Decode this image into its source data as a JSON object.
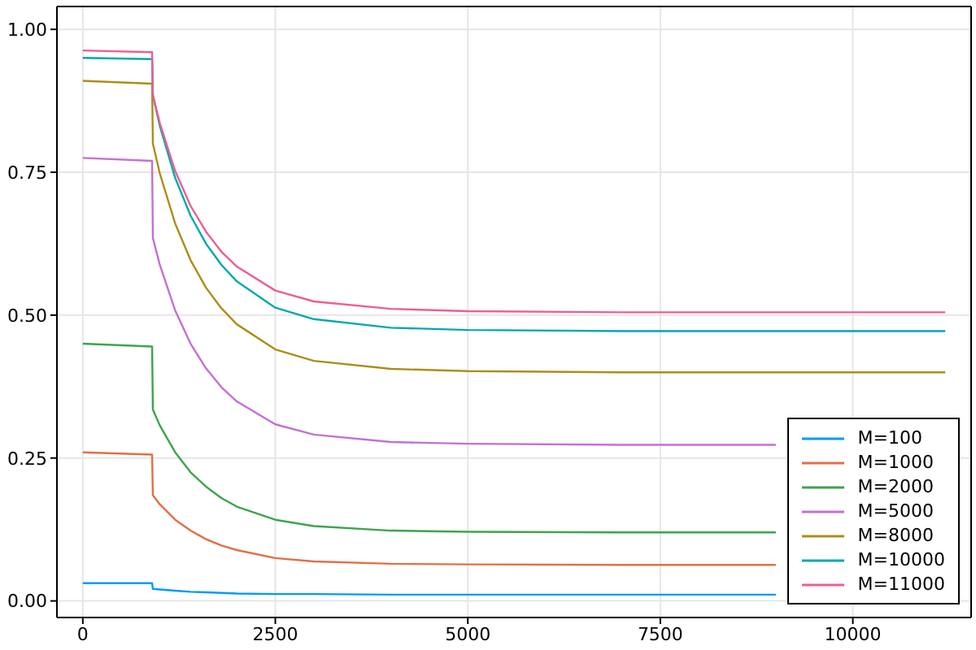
{
  "chart_data": {
    "type": "line",
    "x": [
      0,
      900,
      910,
      1000,
      1200,
      1400,
      1600,
      1800,
      2000,
      2500,
      3000,
      4000,
      5000,
      7000,
      9000,
      11200
    ],
    "series": [
      {
        "name": "M=100",
        "color": "#009af9",
        "values": [
          0.031,
          0.031,
          0.021,
          0.02,
          0.018,
          0.016,
          0.015,
          0.014,
          0.013,
          0.012,
          0.012,
          0.011,
          0.011,
          0.011,
          0.011,
          null
        ]
      },
      {
        "name": "M=1000",
        "color": "#e26f46",
        "values": [
          0.26,
          0.256,
          0.185,
          0.169,
          0.142,
          0.123,
          0.108,
          0.097,
          0.089,
          0.075,
          0.069,
          0.065,
          0.064,
          0.063,
          0.063,
          null
        ]
      },
      {
        "name": "M=2000",
        "color": "#3da44d",
        "values": [
          0.45,
          0.445,
          0.335,
          0.307,
          0.26,
          0.225,
          0.2,
          0.18,
          0.165,
          0.142,
          0.131,
          0.123,
          0.121,
          0.12,
          0.12,
          null
        ]
      },
      {
        "name": "M=5000",
        "color": "#c271d2",
        "values": [
          0.775,
          0.77,
          0.635,
          0.588,
          0.508,
          0.45,
          0.407,
          0.374,
          0.349,
          0.309,
          0.291,
          0.278,
          0.275,
          0.273,
          0.273,
          null
        ]
      },
      {
        "name": "M=8000",
        "color": "#ac8e18",
        "values": [
          0.91,
          0.905,
          0.8,
          0.748,
          0.66,
          0.596,
          0.548,
          0.512,
          0.484,
          0.44,
          0.42,
          0.406,
          0.402,
          0.4,
          0.4,
          0.4
        ]
      },
      {
        "name": "M=10000",
        "color": "#00a9ad",
        "values": [
          0.95,
          0.948,
          0.885,
          0.831,
          0.74,
          0.674,
          0.625,
          0.588,
          0.559,
          0.513,
          0.493,
          0.478,
          0.474,
          0.472,
          0.472,
          0.472
        ]
      },
      {
        "name": "M=11000",
        "color": "#ed5e93",
        "values": [
          0.963,
          0.96,
          0.885,
          0.836,
          0.752,
          0.691,
          0.646,
          0.611,
          0.585,
          0.543,
          0.524,
          0.511,
          0.507,
          0.505,
          0.505,
          0.505
        ]
      }
    ],
    "xlim": [
      -336,
      11536
    ],
    "xticks": [
      0,
      2500,
      5000,
      7500,
      10000
    ],
    "ylim": [
      -0.029,
      1.04
    ],
    "yticks": [
      {
        "value": 0,
        "label": "0.00"
      },
      {
        "value": 0.25,
        "label": "0.25"
      },
      {
        "value": 0.5,
        "label": "0.50"
      },
      {
        "value": 0.75,
        "label": "0.75"
      },
      {
        "value": 1,
        "label": "1.00"
      }
    ],
    "grid": true,
    "legend": "bottom right"
  }
}
